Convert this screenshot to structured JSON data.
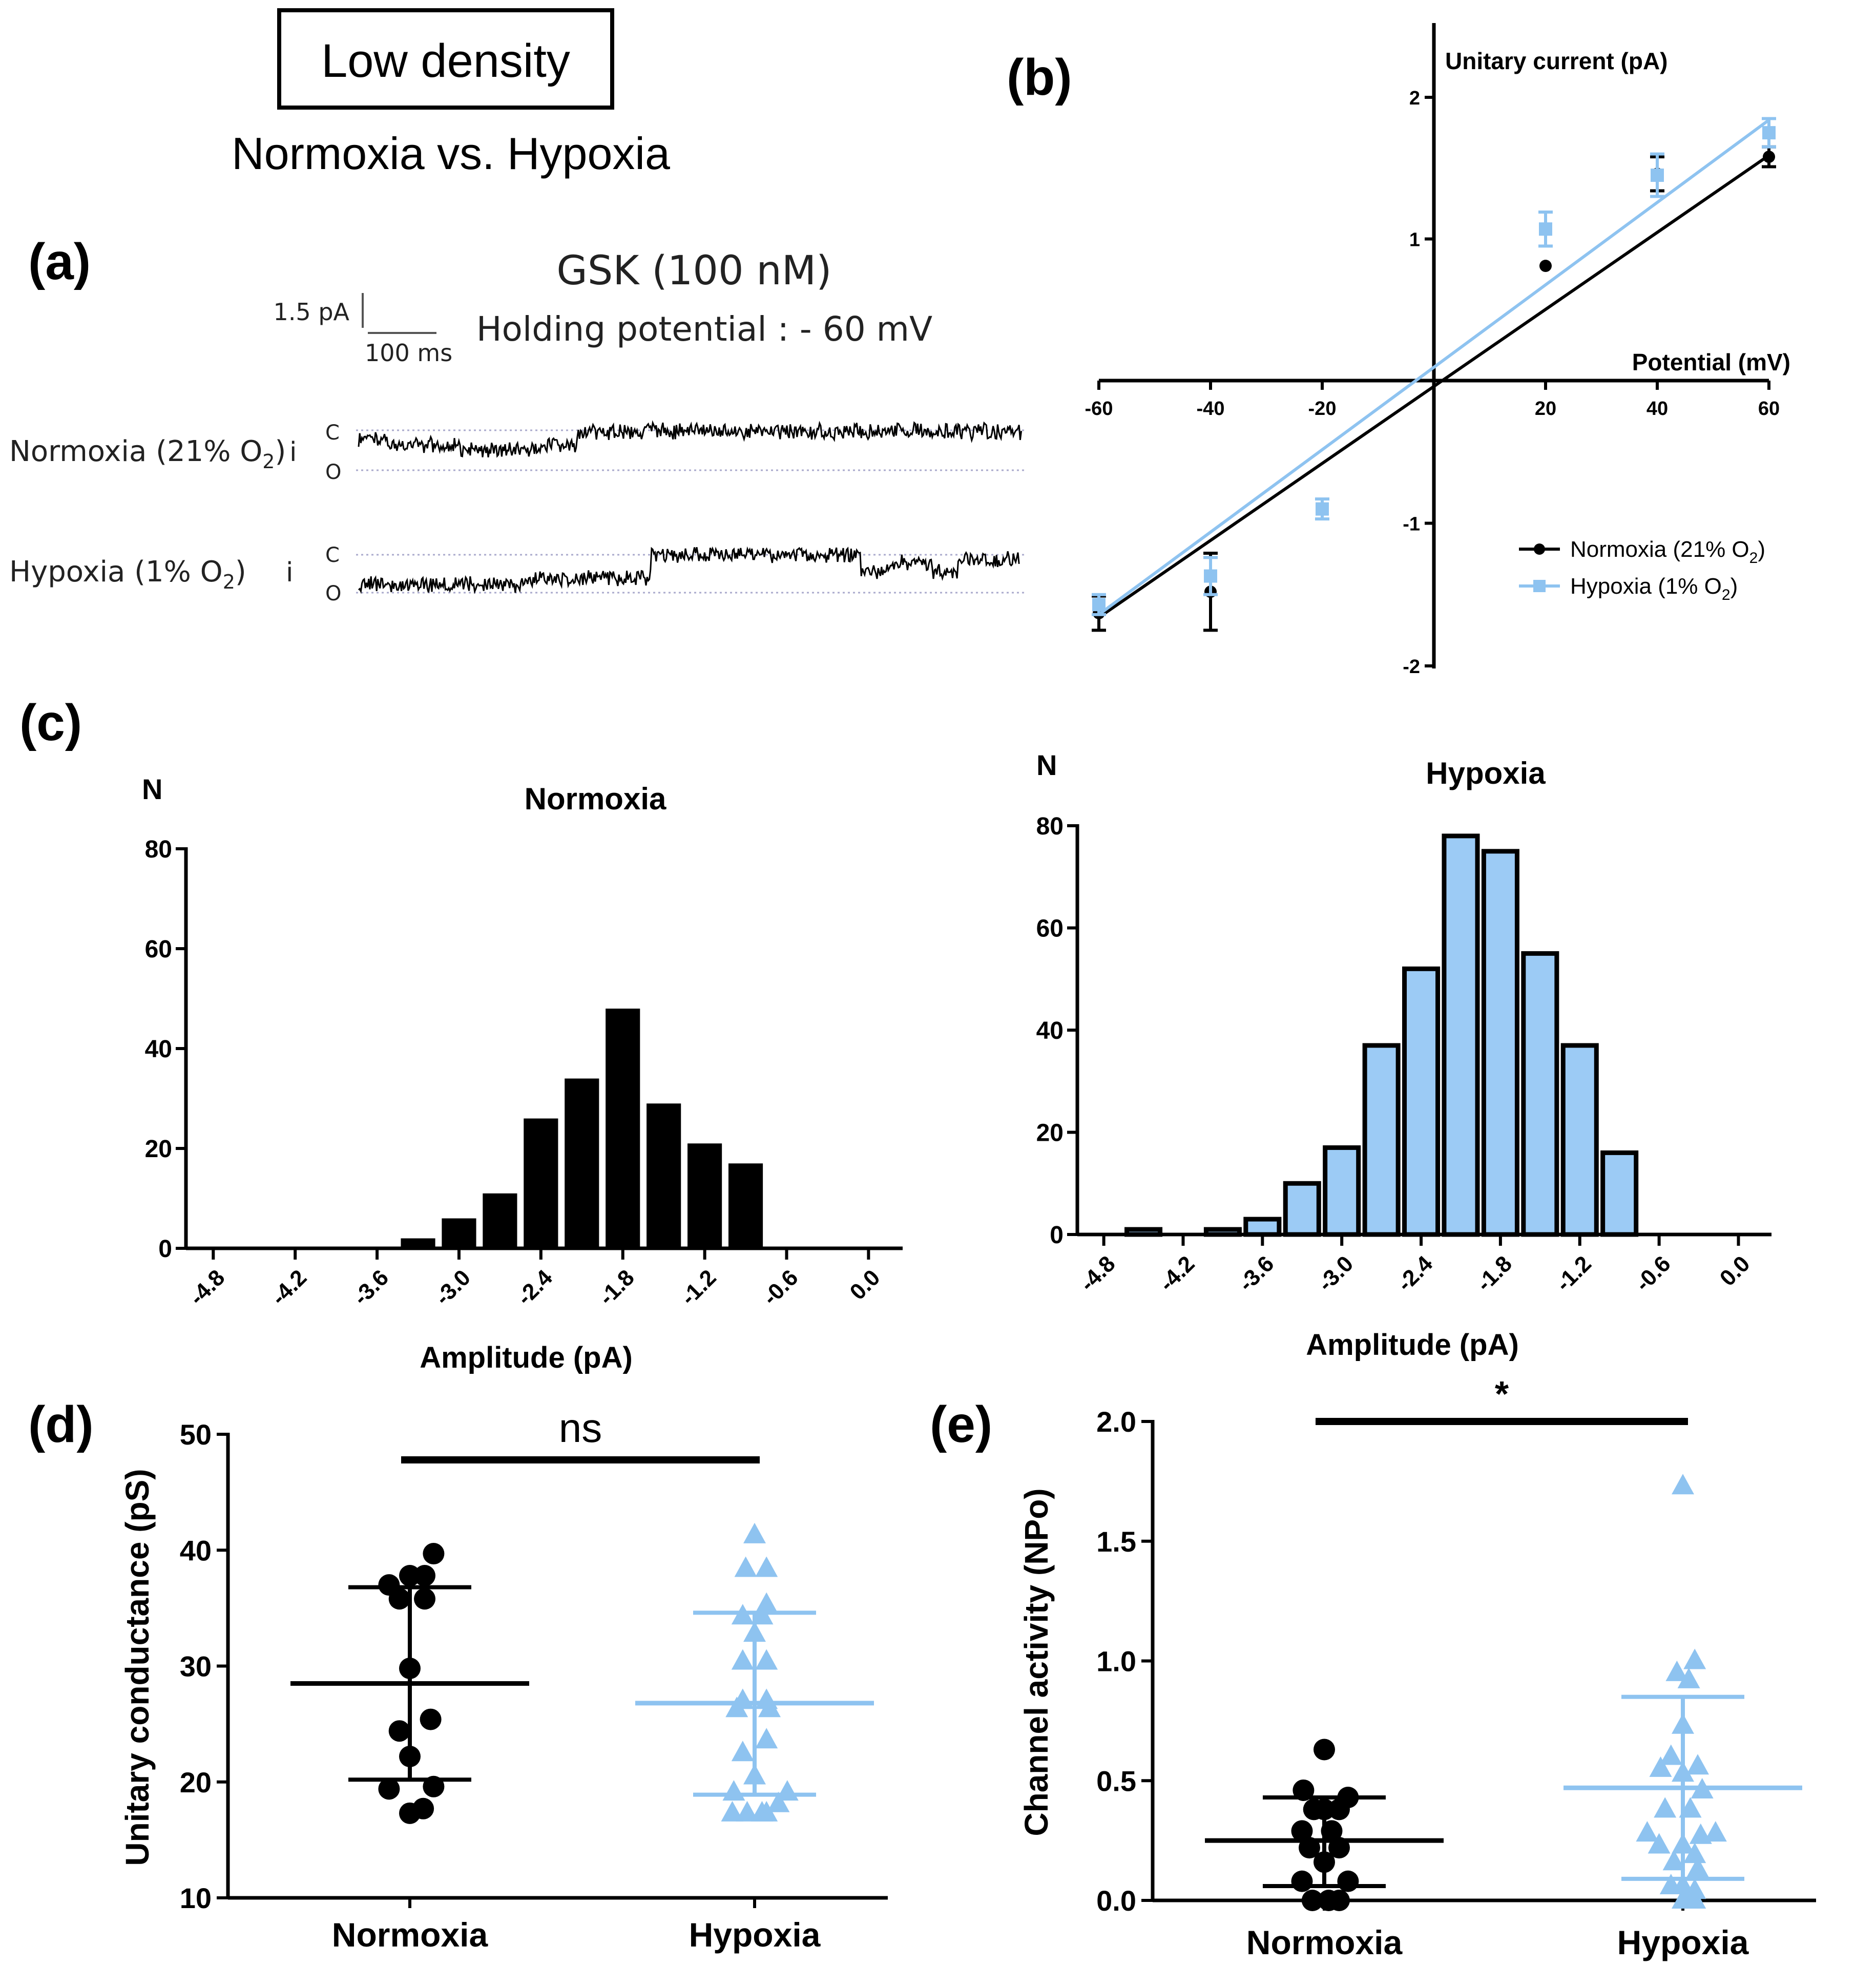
{
  "header": {
    "title_box": "Low density",
    "subtitle": "Normoxia vs. Hypoxia"
  },
  "panel_labels": {
    "a": "(a)",
    "b": "(b)",
    "c": "(c)",
    "d": "(d)",
    "e": "(e)"
  },
  "panel_a": {
    "drug": "GSK (100 nM)",
    "holding": "Holding potential : -  60 mV",
    "scale_current": "1.5 pA",
    "scale_time": "100 ms",
    "trace_normoxia_label": "Normoxia (21% O",
    "trace_hypoxia_label": "Hypoxia (1% O",
    "subscript_2": "2",
    "close_paren": ")",
    "i_label": "i",
    "closed_label": "C",
    "open_label": "O"
  },
  "colors": {
    "normoxia": "#000000",
    "hypoxia": "#8EC3F0",
    "hypoxia_bar": "#9CCBF5"
  },
  "chart_data": [
    {
      "id": "b",
      "type": "line",
      "title": "",
      "xlabel": "Potential (mV)",
      "ylabel": "Unitary current (pA)",
      "xlim": [
        -60,
        60
      ],
      "ylim": [
        -2,
        2.5
      ],
      "x_ticks": [
        -60,
        -40,
        -20,
        20,
        40,
        60
      ],
      "x_tick_labels": [
        "-60",
        "-40",
        "-20",
        "20",
        "40",
        "60"
      ],
      "y_ticks": [
        -2,
        -1,
        1,
        2
      ],
      "y_tick_labels": [
        "-2",
        "-1",
        "1",
        "2"
      ],
      "legend_position": "bottom-right",
      "series": [
        {
          "name": "Normoxia (21% O",
          "name_sub": "2",
          "name_end": ")",
          "x": [
            -60,
            -40,
            -20,
            20,
            40,
            60
          ],
          "y": [
            -1.63,
            -1.48,
            null,
            0.81,
            1.46,
            1.58
          ],
          "err": [
            0.12,
            0.27,
            null,
            0,
            0.12,
            0.07
          ],
          "fit": [
            [
              -60,
              -1.66
            ],
            [
              60,
              1.59
            ]
          ]
        },
        {
          "name": "Hypoxia (1% O",
          "name_sub": "2",
          "name_end": ")",
          "x": [
            -60,
            -40,
            -20,
            20,
            40,
            60
          ],
          "y": [
            -1.57,
            -1.37,
            -0.9,
            1.07,
            1.45,
            1.75
          ],
          "err": [
            0.07,
            0.13,
            0.07,
            0.12,
            0.15,
            0.1
          ],
          "fit": [
            [
              -60,
              -1.64
            ],
            [
              60,
              1.84
            ]
          ]
        }
      ]
    },
    {
      "id": "c_normoxia",
      "type": "bar",
      "title": "Normoxia",
      "xlabel": "Amplitude (pA)",
      "ylabel": "N",
      "xlim": [
        -5.0,
        0.25
      ],
      "ylim": [
        0,
        80
      ],
      "x_ticks": [
        -4.8,
        -4.2,
        -3.6,
        -3.0,
        -2.4,
        -1.8,
        -1.2,
        -0.6,
        0.0
      ],
      "x_tick_labels": [
        "-4.8",
        "-4.2",
        "-3.6",
        "-3.0",
        "-2.4",
        "-1.8",
        "-1.2",
        "-0.6",
        "0.0"
      ],
      "y_ticks": [
        0,
        20,
        40,
        60,
        80
      ],
      "y_tick_labels": [
        "0",
        "20",
        "40",
        "60",
        "80"
      ],
      "bin_width": 0.3,
      "centers": [
        -3.3,
        -3.0,
        -2.7,
        -2.4,
        -2.1,
        -1.8,
        -1.5,
        -1.2,
        -0.9
      ],
      "values": [
        2,
        6,
        11,
        26,
        34,
        48,
        29,
        21,
        17
      ]
    },
    {
      "id": "c_hypoxia",
      "type": "bar",
      "title": "Hypoxia",
      "xlabel": "Amplitude (pA)",
      "ylabel": "N",
      "xlim": [
        -5.0,
        0.25
      ],
      "ylim": [
        0,
        80
      ],
      "x_ticks": [
        -4.8,
        -4.2,
        -3.6,
        -3.0,
        -2.4,
        -1.8,
        -1.2,
        -0.6,
        0.0
      ],
      "x_tick_labels": [
        "-4.8",
        "-4.2",
        "-3.6",
        "-3.0",
        "-2.4",
        "-1.8",
        "-1.2",
        "-0.6",
        "0.0"
      ],
      "y_ticks": [
        0,
        20,
        40,
        60,
        80
      ],
      "y_tick_labels": [
        "0",
        "20",
        "40",
        "60",
        "80"
      ],
      "bin_width": 0.3,
      "centers": [
        -4.5,
        -3.9,
        -3.6,
        -3.3,
        -3.0,
        -2.7,
        -2.4,
        -2.1,
        -1.8,
        -1.5,
        -1.2,
        -0.9
      ],
      "values": [
        1,
        1,
        3,
        10,
        17,
        37,
        52,
        78,
        75,
        55,
        37,
        16
      ]
    },
    {
      "id": "d",
      "type": "scatter",
      "title": "",
      "xlabel": "",
      "ylabel": "Unitary conductance (pS)",
      "ylim": [
        10,
        50
      ],
      "y_ticks": [
        10,
        20,
        30,
        40,
        50
      ],
      "y_tick_labels": [
        "10",
        "20",
        "30",
        "40",
        "50"
      ],
      "categories": [
        "Normoxia",
        "Hypoxia"
      ],
      "significance": "ns",
      "series": [
        {
          "name": "Normoxia",
          "mean": 28.5,
          "sd_low": 20.2,
          "sd_high": 36.8,
          "points": [
            [
              -0.14,
              37.0
            ],
            [
              0.0,
              37.8
            ],
            [
              0.1,
              37.8
            ],
            [
              0.16,
              39.7
            ],
            [
              -0.07,
              35.8
            ],
            [
              0.1,
              35.8
            ],
            [
              0.0,
              29.8
            ],
            [
              0.14,
              25.4
            ],
            [
              -0.07,
              24.4
            ],
            [
              0.0,
              22.2
            ],
            [
              -0.14,
              19.4
            ],
            [
              0.16,
              19.6
            ],
            [
              0.09,
              17.7
            ],
            [
              0.0,
              17.3
            ]
          ]
        },
        {
          "name": "Hypoxia",
          "mean": 26.8,
          "sd_low": 18.9,
          "sd_high": 34.6,
          "points": [
            [
              0.0,
              41.3
            ],
            [
              -0.06,
              38.4
            ],
            [
              0.08,
              38.4
            ],
            [
              0.08,
              35.3
            ],
            [
              -0.08,
              34.3
            ],
            [
              0.05,
              34.3
            ],
            [
              0.0,
              32.8
            ],
            [
              -0.08,
              30.4
            ],
            [
              0.08,
              30.4
            ],
            [
              -0.08,
              27.0
            ],
            [
              0.08,
              27.0
            ],
            [
              -0.12,
              26.3
            ],
            [
              0.1,
              26.3
            ],
            [
              0.08,
              23.6
            ],
            [
              -0.08,
              22.5
            ],
            [
              0.0,
              20.5
            ],
            [
              -0.14,
              19.1
            ],
            [
              0.22,
              19.1
            ],
            [
              0.16,
              18.1
            ],
            [
              -0.15,
              17.3
            ],
            [
              -0.05,
              17.3
            ],
            [
              0.05,
              17.3
            ],
            [
              0.08,
              17.3
            ]
          ]
        }
      ]
    },
    {
      "id": "e",
      "type": "scatter",
      "title": "",
      "xlabel": "",
      "ylabel": "Channel activity (NPo)",
      "ylim": [
        0.0,
        2.0
      ],
      "y_ticks": [
        0.0,
        0.5,
        1.0,
        1.5,
        2.0
      ],
      "y_tick_labels": [
        "0.0",
        "0.5",
        "1.0",
        "1.5",
        "2.0"
      ],
      "categories": [
        "Normoxia",
        "Hypoxia"
      ],
      "significance": "*",
      "series": [
        {
          "name": "Normoxia",
          "mean": 0.25,
          "sd_low": 0.06,
          "sd_high": 0.43,
          "points": [
            [
              0.0,
              0.63
            ],
            [
              -0.14,
              0.46
            ],
            [
              0.16,
              0.43
            ],
            [
              -0.07,
              0.38
            ],
            [
              0.0,
              0.38
            ],
            [
              0.1,
              0.38
            ],
            [
              -0.15,
              0.29
            ],
            [
              0.05,
              0.29
            ],
            [
              -0.1,
              0.22
            ],
            [
              0.1,
              0.22
            ],
            [
              0.0,
              0.16
            ],
            [
              -0.15,
              0.08
            ],
            [
              0.16,
              0.08
            ],
            [
              -0.08,
              0.0
            ],
            [
              0.03,
              0.0
            ],
            [
              0.1,
              0.0
            ]
          ]
        },
        {
          "name": "Hypoxia",
          "mean": 0.47,
          "sd_low": 0.09,
          "sd_high": 0.85,
          "points": [
            [
              0.0,
              1.73
            ],
            [
              0.08,
              1.0
            ],
            [
              -0.04,
              0.95
            ],
            [
              0.04,
              0.92
            ],
            [
              0.0,
              0.73
            ],
            [
              -0.08,
              0.6
            ],
            [
              0.1,
              0.56
            ],
            [
              -0.15,
              0.55
            ],
            [
              0.0,
              0.53
            ],
            [
              0.13,
              0.46
            ],
            [
              -0.12,
              0.38
            ],
            [
              0.05,
              0.38
            ],
            [
              -0.24,
              0.28
            ],
            [
              0.12,
              0.27
            ],
            [
              0.22,
              0.28
            ],
            [
              -0.16,
              0.23
            ],
            [
              0.0,
              0.23
            ],
            [
              0.08,
              0.19
            ],
            [
              -0.06,
              0.16
            ],
            [
              0.1,
              0.13
            ],
            [
              -0.08,
              0.06
            ],
            [
              0.0,
              0.06
            ],
            [
              0.08,
              0.04
            ],
            [
              0.0,
              0.0
            ],
            [
              0.08,
              0.0
            ]
          ]
        }
      ]
    }
  ]
}
